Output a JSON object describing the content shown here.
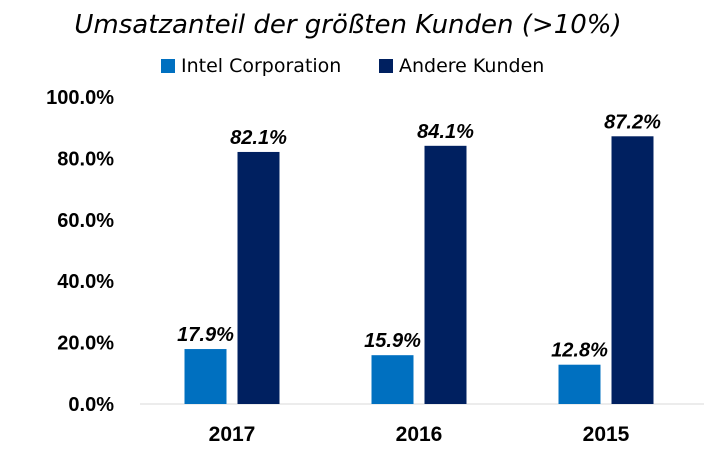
{
  "chart_data": {
    "type": "bar",
    "title": "Umsatzanteil der größten Kunden (>10%)",
    "categories": [
      "2017",
      "2016",
      "2015"
    ],
    "series": [
      {
        "name": "Intel Corporation",
        "color": "#0070c0",
        "values": [
          17.9,
          15.9,
          12.8
        ],
        "labels": [
          "17.9%",
          "15.9%",
          "12.8%"
        ]
      },
      {
        "name": "Andere Kunden",
        "color": "#002060",
        "values": [
          82.1,
          84.1,
          87.2
        ],
        "labels": [
          "82.1%",
          "84.1%",
          "87.2%"
        ]
      }
    ],
    "ylim": [
      0,
      100
    ],
    "yticks": [
      "0.0%",
      "20.0%",
      "40.0%",
      "60.0%",
      "80.0%",
      "100.0%"
    ],
    "xlabel": "",
    "ylabel": "",
    "legend": "top",
    "grid": false
  }
}
